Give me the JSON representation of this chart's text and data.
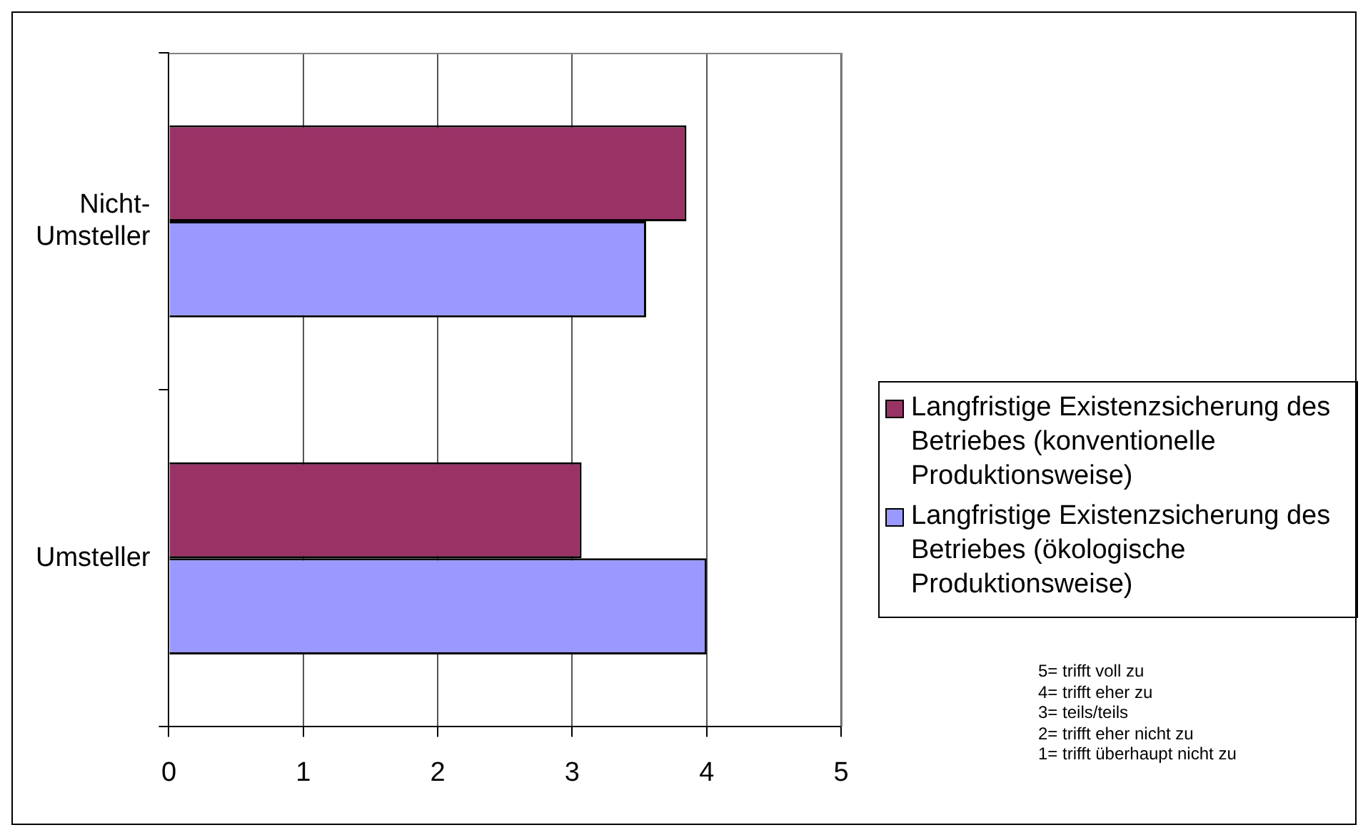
{
  "chart_data": {
    "type": "bar",
    "orientation": "horizontal",
    "categories": [
      "Nicht-Umsteller",
      "Umsteller"
    ],
    "series": [
      {
        "name": "Langfristige Existenzsicherung des Betriebes (konventionelle Produktionsweise)",
        "color": "#993366",
        "values": [
          3.85,
          3.07
        ]
      },
      {
        "name": "Langfristige Existenzsicherung des Betriebes (ökologische Produktionsweise)",
        "color": "#9999ff",
        "values": [
          3.55,
          4.0
        ]
      }
    ],
    "xlim": [
      0,
      5
    ],
    "xticks": [
      0,
      1,
      2,
      3,
      4,
      5
    ],
    "grid": "x",
    "legend": "right",
    "annotations": [
      "5= trifft voll zu",
      "4= trifft eher zu",
      "3= teils/teils",
      "2= trifft eher nicht zu",
      "1= trifft überhaupt nicht zu"
    ]
  }
}
